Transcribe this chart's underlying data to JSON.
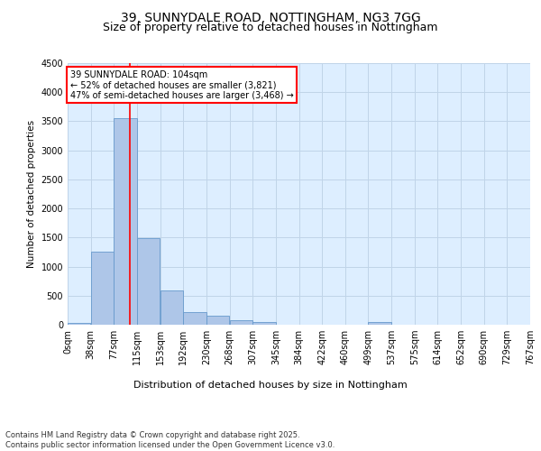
{
  "title_line1": "39, SUNNYDALE ROAD, NOTTINGHAM, NG3 7GG",
  "title_line2": "Size of property relative to detached houses in Nottingham",
  "xlabel": "Distribution of detached houses by size in Nottingham",
  "ylabel": "Number of detached properties",
  "bar_color": "#aec6e8",
  "bar_edge_color": "#6699cc",
  "grid_color": "#c0d4e8",
  "background_color": "#ddeeff",
  "annotation_text": "39 SUNNYDALE ROAD: 104sqm\n← 52% of detached houses are smaller (3,821)\n47% of semi-detached houses are larger (3,468) →",
  "annotation_box_color": "white",
  "annotation_edge_color": "red",
  "vline_color": "red",
  "vline_x": 104,
  "bin_width": 38.5,
  "bin_starts": [
    0,
    38.5,
    77,
    115.5,
    154,
    192.5,
    231,
    269.5,
    308,
    346.5,
    385,
    423.5,
    462,
    500.5,
    539,
    577.5,
    616,
    654.5,
    693,
    731.5
  ],
  "bin_labels": [
    "0sqm",
    "38sqm",
    "77sqm",
    "115sqm",
    "153sqm",
    "192sqm",
    "230sqm",
    "268sqm",
    "307sqm",
    "345sqm",
    "384sqm",
    "422sqm",
    "460sqm",
    "499sqm",
    "537sqm",
    "575sqm",
    "614sqm",
    "652sqm",
    "690sqm",
    "729sqm",
    "767sqm"
  ],
  "bar_heights": [
    25,
    1260,
    3560,
    1490,
    590,
    215,
    150,
    85,
    40,
    5,
    5,
    0,
    0,
    50,
    0,
    0,
    0,
    0,
    0,
    0
  ],
  "ylim": [
    0,
    4500
  ],
  "yticks": [
    0,
    500,
    1000,
    1500,
    2000,
    2500,
    3000,
    3500,
    4000,
    4500
  ],
  "footnote": "Contains HM Land Registry data © Crown copyright and database right 2025.\nContains public sector information licensed under the Open Government Licence v3.0.",
  "fig_bg_color": "#ffffff",
  "title_fontsize": 10,
  "subtitle_fontsize": 9
}
